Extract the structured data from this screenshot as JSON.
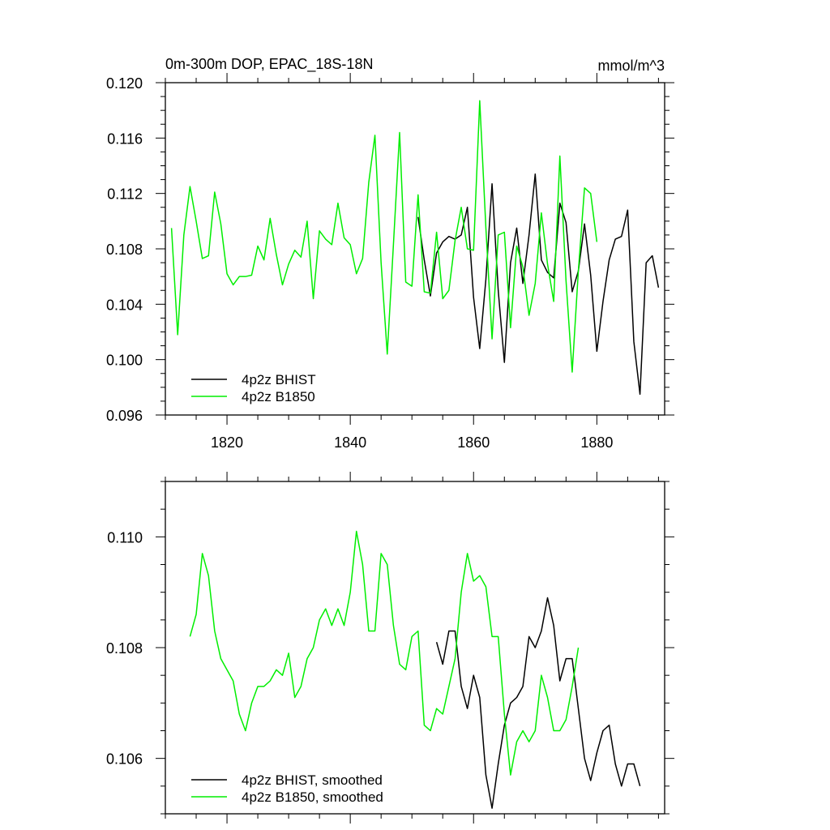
{
  "figure": {
    "title_left": "0m-300m DOP, EPAC_18S-18N",
    "title_right": "mmol/m^3"
  },
  "chart_data": [
    {
      "type": "line",
      "title": "0m-300m DOP, EPAC_18S-18N",
      "units": "mmol/m^3",
      "xlim": [
        1810,
        1891
      ],
      "ylim": [
        0.096,
        0.12
      ],
      "xticks": [
        1820,
        1840,
        1860,
        1880
      ],
      "xtick_labels": [
        "1820",
        "1840",
        "1860",
        "1880"
      ],
      "yticks": [
        0.096,
        0.1,
        0.104,
        0.108,
        0.112,
        0.116,
        0.12
      ],
      "ytick_labels": [
        "0.096",
        "0.100",
        "0.104",
        "0.108",
        "0.112",
        "0.116",
        "0.120"
      ],
      "grid": false,
      "legend_position": "bottom-left",
      "series": [
        {
          "name": "4p2z BHIST",
          "color": "#000000",
          "x": [
            1851,
            1852,
            1853,
            1854,
            1855,
            1856,
            1857,
            1858,
            1859,
            1860,
            1861,
            1862,
            1863,
            1864,
            1865,
            1866,
            1867,
            1868,
            1869,
            1870,
            1871,
            1872,
            1873,
            1874,
            1875,
            1876,
            1877,
            1878,
            1879,
            1880,
            1881,
            1882,
            1883,
            1884,
            1885,
            1886,
            1887,
            1888,
            1889,
            1890
          ],
          "y": [
            0.1103,
            0.1072,
            0.1046,
            0.1077,
            0.1085,
            0.1089,
            0.1087,
            0.109,
            0.111,
            0.1045,
            0.1008,
            0.1058,
            0.1127,
            0.105,
            0.0998,
            0.107,
            0.1095,
            0.1055,
            0.109,
            0.1134,
            0.1072,
            0.1063,
            0.1059,
            0.1113,
            0.1099,
            0.1049,
            0.1064,
            0.1098,
            0.1061,
            0.1006,
            0.1042,
            0.1072,
            0.1087,
            0.1089,
            0.1108,
            0.1013,
            0.0975,
            0.107,
            0.1075,
            0.1052
          ]
        },
        {
          "name": "4p2z B1850",
          "color": "#00ee00",
          "x": [
            1811,
            1812,
            1813,
            1814,
            1815,
            1816,
            1817,
            1818,
            1819,
            1820,
            1821,
            1822,
            1823,
            1824,
            1825,
            1826,
            1827,
            1828,
            1829,
            1830,
            1831,
            1832,
            1833,
            1834,
            1835,
            1836,
            1837,
            1838,
            1839,
            1840,
            1841,
            1842,
            1843,
            1844,
            1845,
            1846,
            1847,
            1848,
            1849,
            1850,
            1851,
            1852,
            1853,
            1854,
            1855,
            1856,
            1857,
            1858,
            1859,
            1860,
            1861,
            1862,
            1863,
            1864,
            1865,
            1866,
            1867,
            1868,
            1869,
            1870,
            1871,
            1872,
            1873,
            1874,
            1875,
            1876,
            1877,
            1878,
            1879,
            1880
          ],
          "y": [
            0.1095,
            0.1018,
            0.109,
            0.1125,
            0.11,
            0.1073,
            0.1075,
            0.1121,
            0.1098,
            0.1062,
            0.1054,
            0.106,
            0.106,
            0.1061,
            0.1082,
            0.1072,
            0.1102,
            0.1076,
            0.1054,
            0.1069,
            0.1079,
            0.1074,
            0.11,
            0.1044,
            0.1093,
            0.1087,
            0.1083,
            0.1113,
            0.1088,
            0.1083,
            0.1062,
            0.1073,
            0.1128,
            0.1162,
            0.107,
            0.1004,
            0.1083,
            0.1164,
            0.1056,
            0.1053,
            0.1119,
            0.1049,
            0.1048,
            0.1092,
            0.1044,
            0.105,
            0.1086,
            0.111,
            0.108,
            0.1079,
            0.1187,
            0.1095,
            0.1015,
            0.109,
            0.1092,
            0.1023,
            0.1082,
            0.1067,
            0.1032,
            0.1055,
            0.1106,
            0.1069,
            0.1042,
            0.1147,
            0.1057,
            0.0991,
            0.1064,
            0.1124,
            0.112,
            0.1085
          ]
        }
      ]
    },
    {
      "type": "line",
      "xlim": [
        1810,
        1891
      ],
      "ylim": [
        0.105,
        0.111
      ],
      "xticks": [
        1820,
        1840,
        1860,
        1880
      ],
      "xtick_labels": [],
      "yticks": [
        0.106,
        0.108,
        0.11
      ],
      "ytick_labels": [
        "0.106",
        "0.108",
        "0.110"
      ],
      "grid": false,
      "legend_position": "bottom-left",
      "series": [
        {
          "name": "4p2z BHIST, smoothed",
          "color": "#000000",
          "x": [
            1854,
            1855,
            1856,
            1857,
            1858,
            1859,
            1860,
            1861,
            1862,
            1863,
            1864,
            1865,
            1866,
            1867,
            1868,
            1869,
            1870,
            1871,
            1872,
            1873,
            1874,
            1875,
            1876,
            1877,
            1878,
            1879,
            1880,
            1881,
            1882,
            1883,
            1884,
            1885,
            1886,
            1887
          ],
          "y": [
            0.1081,
            0.1077,
            0.1083,
            0.1083,
            0.1073,
            0.1069,
            0.1075,
            0.1071,
            0.1057,
            0.1051,
            0.1059,
            0.1066,
            0.107,
            0.1071,
            0.1073,
            0.1082,
            0.108,
            0.1083,
            0.1089,
            0.1084,
            0.1074,
            0.1078,
            0.1078,
            0.1069,
            0.106,
            0.1056,
            0.1061,
            0.1065,
            0.1066,
            0.1059,
            0.1055,
            0.1059,
            0.1059,
            0.1055
          ]
        },
        {
          "name": "4p2z B1850, smoothed",
          "color": "#00ee00",
          "x": [
            1814,
            1815,
            1816,
            1817,
            1818,
            1819,
            1820,
            1821,
            1822,
            1823,
            1824,
            1825,
            1826,
            1827,
            1828,
            1829,
            1830,
            1831,
            1832,
            1833,
            1834,
            1835,
            1836,
            1837,
            1838,
            1839,
            1840,
            1841,
            1842,
            1843,
            1844,
            1845,
            1846,
            1847,
            1848,
            1849,
            1850,
            1851,
            1852,
            1853,
            1854,
            1855,
            1856,
            1857,
            1858,
            1859,
            1860,
            1861,
            1862,
            1863,
            1864,
            1865,
            1866,
            1867,
            1868,
            1869,
            1870,
            1871,
            1872,
            1873,
            1874,
            1875,
            1876,
            1877
          ],
          "y": [
            0.1082,
            0.1086,
            0.1097,
            0.1093,
            0.1083,
            0.1078,
            0.1076,
            0.1074,
            0.1068,
            0.1065,
            0.107,
            0.1073,
            0.1073,
            0.1074,
            0.1076,
            0.1075,
            0.1079,
            0.1071,
            0.1073,
            0.1078,
            0.108,
            0.1085,
            0.1087,
            0.1084,
            0.1087,
            0.1084,
            0.109,
            0.1101,
            0.1095,
            0.1083,
            0.1083,
            0.1097,
            0.1095,
            0.1084,
            0.1077,
            0.1076,
            0.1082,
            0.1083,
            0.1066,
            0.1065,
            0.1069,
            0.1068,
            0.1073,
            0.1078,
            0.109,
            0.1097,
            0.1092,
            0.1093,
            0.1091,
            0.1082,
            0.1082,
            0.1068,
            0.1057,
            0.1063,
            0.1065,
            0.1063,
            0.1065,
            0.1075,
            0.1071,
            0.1065,
            0.1065,
            0.1067,
            0.1073,
            0.108
          ]
        }
      ]
    }
  ]
}
